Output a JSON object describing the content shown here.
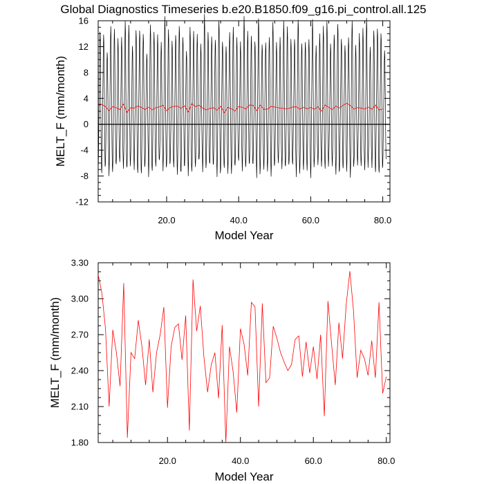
{
  "title": "Global Diagnostics Timeseries b.e20.B1850.f09_g16.pi_control.all.125",
  "chart_data": [
    {
      "type": "line",
      "xlabel": "Model Year",
      "ylabel": "MELT_F (mm/month)",
      "xlim": [
        1,
        82
      ],
      "ylim": [
        -12,
        16
      ],
      "xticks": [
        20,
        40,
        60,
        80
      ],
      "xtick_labels": [
        "20.0",
        "40.0",
        "60.0",
        "80.0"
      ],
      "yticks": [
        -12,
        -8,
        -4,
        0,
        4,
        8,
        12,
        16
      ],
      "ytick_labels": [
        "-12",
        "-8",
        "-4",
        "0",
        "4",
        "8",
        "12",
        "16"
      ],
      "reference_line_y": 0,
      "colors": {
        "monthly": "#000000",
        "annual": "#ff0000",
        "zero_line": "#000000"
      },
      "series": [
        {
          "kind": "monthly",
          "years": [
            1,
            80
          ],
          "monthly_cycle": [
            -6.8,
            -5.0,
            -1.5,
            2.2,
            6.5,
            11.5,
            14.0,
            12.5,
            7.0,
            1.5,
            -3.5,
            -6.0
          ]
        },
        {
          "kind": "annual",
          "x_start": 1,
          "x_step": 1,
          "values": [
            3.2,
            3.05,
            2.75,
            2.1,
            2.74,
            2.55,
            2.27,
            3.13,
            1.84,
            2.55,
            2.5,
            2.82,
            2.6,
            2.28,
            2.66,
            2.22,
            2.55,
            2.7,
            2.93,
            2.09,
            2.6,
            2.76,
            2.79,
            2.49,
            2.86,
            1.9,
            3.16,
            2.73,
            2.94,
            2.51,
            2.22,
            2.45,
            2.55,
            2.17,
            2.78,
            1.8,
            2.6,
            2.39,
            2.05,
            2.75,
            2.62,
            2.36,
            2.97,
            2.93,
            2.1,
            2.96,
            2.3,
            2.34,
            2.77,
            2.67,
            2.55,
            2.47,
            2.4,
            2.45,
            2.66,
            2.69,
            2.35,
            2.64,
            2.38,
            2.6,
            2.33,
            2.7,
            2.02,
            2.98,
            2.62,
            2.28,
            2.8,
            2.5,
            2.95,
            3.23,
            2.9,
            2.34,
            2.57,
            2.5,
            2.36,
            2.65,
            2.34,
            2.97,
            2.21,
            2.35
          ]
        }
      ]
    },
    {
      "type": "line",
      "xlabel": "Model Year",
      "ylabel": "MELT_F (mm/month)",
      "xlim": [
        1,
        81
      ],
      "ylim": [
        1.8,
        3.3
      ],
      "xticks": [
        20,
        40,
        60,
        80
      ],
      "xtick_labels": [
        "20.0",
        "40.0",
        "60.0",
        "80.0"
      ],
      "yticks": [
        1.8,
        2.1,
        2.4,
        2.7,
        3.0,
        3.3
      ],
      "ytick_labels": [
        "1.80",
        "2.10",
        "2.40",
        "2.70",
        "3.00",
        "3.30"
      ],
      "colors": {
        "annual": "#ff0000"
      },
      "series": [
        {
          "kind": "annual",
          "x_start": 1,
          "x_step": 1,
          "values": [
            3.2,
            3.05,
            2.75,
            2.1,
            2.74,
            2.55,
            2.27,
            3.13,
            1.84,
            2.55,
            2.5,
            2.82,
            2.6,
            2.28,
            2.66,
            2.22,
            2.55,
            2.7,
            2.93,
            2.09,
            2.6,
            2.76,
            2.79,
            2.49,
            2.86,
            1.9,
            3.16,
            2.73,
            2.94,
            2.51,
            2.22,
            2.45,
            2.55,
            2.17,
            2.78,
            1.8,
            2.6,
            2.39,
            2.05,
            2.75,
            2.62,
            2.36,
            2.97,
            2.93,
            2.1,
            2.96,
            2.3,
            2.34,
            2.77,
            2.67,
            2.55,
            2.47,
            2.4,
            2.45,
            2.66,
            2.69,
            2.35,
            2.64,
            2.38,
            2.6,
            2.33,
            2.7,
            2.02,
            2.98,
            2.62,
            2.28,
            2.8,
            2.5,
            2.95,
            3.23,
            2.9,
            2.34,
            2.57,
            2.5,
            2.36,
            2.65,
            2.34,
            2.97,
            2.21,
            2.35
          ]
        }
      ]
    }
  ]
}
